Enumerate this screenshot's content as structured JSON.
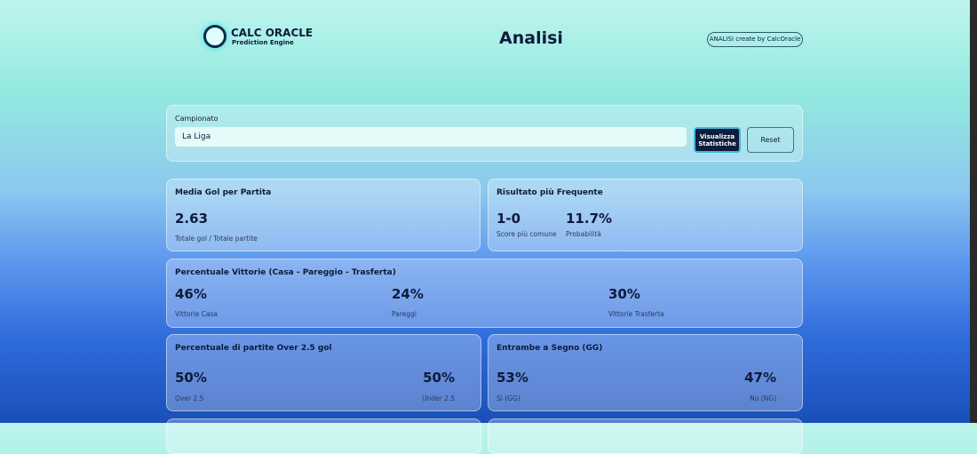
{
  "header": {
    "logo_title": "CALC ORACLE",
    "logo_subtitle": "Prediction Engine",
    "title": "Analisi",
    "badge": "ANALISI create by CalcOracle"
  },
  "filter": {
    "label": "Campionato",
    "selected": "La Liga",
    "submit": "Visualizza Statistiche",
    "reset": "Reset"
  },
  "cards": [
    {
      "title": "Media Gol per Partita",
      "stats": [
        {
          "value": "2.63",
          "label": "Totale gol / Totale partite"
        }
      ]
    },
    {
      "title": "Risultato più Frequente",
      "stats": [
        {
          "value": "1-0",
          "label": "Score più comune"
        },
        {
          "value": "11.7%",
          "label": "Probabilità"
        }
      ]
    },
    {
      "title": "Percentuale Vittorie (Casa - Pareggio - Trasferta)",
      "stats": [
        {
          "value": "46%",
          "label": "Vittorie Casa"
        },
        {
          "value": "24%",
          "label": "Pareggi"
        },
        {
          "value": "30%",
          "label": "Vittorie Trasferta"
        }
      ]
    },
    {
      "title": "Percentuale di partite Over 2.5 gol",
      "stats": [
        {
          "value": "50%",
          "label": "Over 2.5"
        },
        {
          "value": "50%",
          "label": "Under 2.5"
        }
      ]
    },
    {
      "title": "Entrambe a Segno (GG)",
      "stats": [
        {
          "value": "53%",
          "label": "Sì (GG)"
        },
        {
          "value": "47%",
          "label": "No (NG)"
        }
      ]
    }
  ]
}
